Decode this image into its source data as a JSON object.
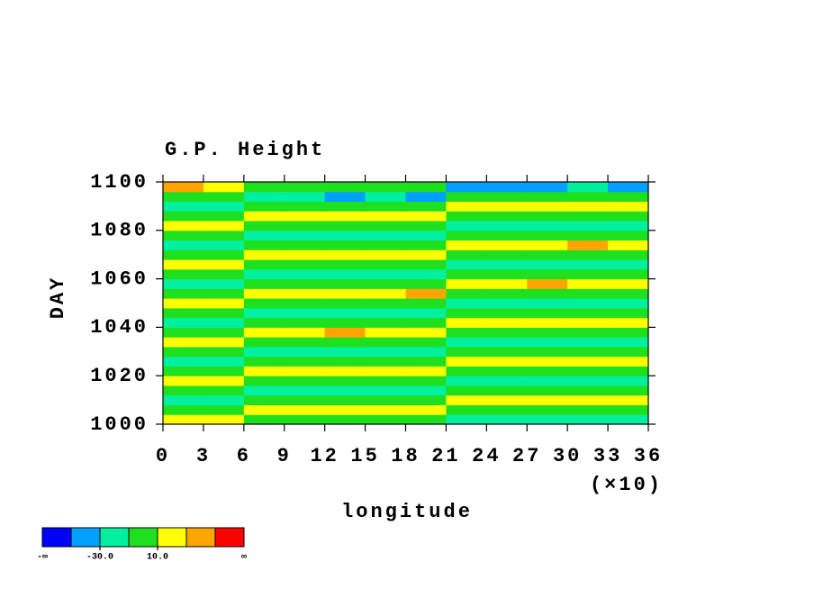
{
  "chart_data": {
    "type": "contour",
    "title": "G.P. Height",
    "x_label": "longitude",
    "y_label": "DAY",
    "x_scale_label": "(×10)",
    "xlim": [
      0,
      360
    ],
    "xticks": [
      0,
      {
        "value": 30,
        "label": "3"
      },
      {
        "value": 60,
        "label": "6"
      },
      {
        "value": 90,
        "label": "9"
      },
      {
        "value": 120,
        "label": "12"
      },
      {
        "value": 150,
        "label": "15"
      },
      {
        "value": 180,
        "label": "18"
      },
      {
        "value": 210,
        "label": "21"
      },
      {
        "value": 240,
        "label": "24"
      },
      {
        "value": 270,
        "label": "27"
      },
      {
        "value": 300,
        "label": "30"
      },
      {
        "value": 330,
        "label": "33"
      },
      {
        "value": 360,
        "label": "36"
      }
    ],
    "ylim": [
      1000,
      1100
    ],
    "yticks": [
      1000,
      1020,
      1040,
      1060,
      1080,
      1100
    ],
    "x": [
      15,
      45,
      75,
      105,
      135,
      165,
      195,
      225,
      255,
      285,
      315,
      345
    ],
    "y": [
      1002,
      1006,
      1010,
      1014,
      1018,
      1022,
      1026,
      1030,
      1034,
      1038,
      1042,
      1046,
      1050,
      1054,
      1058,
      1062,
      1066,
      1070,
      1074,
      1078,
      1082,
      1086,
      1090,
      1094,
      1098
    ],
    "z": [
      [
        18,
        16,
        -3,
        -2,
        -4,
        -1,
        -3,
        -17,
        -19,
        -16,
        -20,
        -18
      ],
      [
        3,
        1,
        19,
        17,
        21,
        16,
        18,
        -2,
        -4,
        -1,
        -3,
        -2
      ],
      [
        -17,
        -19,
        2,
        4,
        1,
        3,
        2,
        16,
        19,
        22,
        17,
        20
      ],
      [
        -2,
        -3,
        -19,
        -16,
        -18,
        -21,
        -17,
        1,
        3,
        2,
        4,
        1
      ],
      [
        19,
        17,
        -1,
        -3,
        -2,
        -4,
        -2,
        -18,
        -16,
        -19,
        -17,
        -21
      ],
      [
        2,
        4,
        17,
        20,
        18,
        22,
        19,
        -3,
        -1,
        -2,
        -4,
        -3
      ],
      [
        -18,
        -16,
        3,
        1,
        2,
        4,
        3,
        18,
        21,
        17,
        19,
        16
      ],
      [
        -3,
        -1,
        -17,
        -20,
        -22,
        -18,
        -16,
        2,
        1,
        4,
        3,
        2
      ],
      [
        17,
        20,
        -2,
        -1,
        -3,
        -2,
        -4,
        -19,
        -20,
        -17,
        -18,
        -16
      ],
      [
        1,
        3,
        18,
        21,
        36,
        17,
        20,
        -2,
        -3,
        -1,
        -2,
        -4
      ],
      [
        -19,
        -17,
        4,
        2,
        3,
        1,
        2,
        17,
        20,
        18,
        22,
        19
      ],
      [
        -1,
        -2,
        -18,
        -16,
        -19,
        -17,
        -20,
        3,
        2,
        1,
        4,
        3
      ],
      [
        18,
        19,
        -3,
        -2,
        -1,
        -4,
        -3,
        -17,
        -18,
        -21,
        -19,
        -17
      ],
      [
        2,
        1,
        19,
        18,
        17,
        21,
        38,
        -1,
        -2,
        -3,
        -1,
        -2
      ],
      [
        -16,
        -18,
        1,
        3,
        2,
        4,
        1,
        19,
        18,
        37,
        17,
        20
      ],
      [
        -3,
        -2,
        -20,
        -17,
        -18,
        -16,
        -19,
        2,
        3,
        1,
        2,
        4
      ],
      [
        19,
        18,
        -1,
        -2,
        -4,
        -3,
        -2,
        -18,
        -17,
        -16,
        -19,
        -20
      ],
      [
        3,
        2,
        17,
        19,
        21,
        18,
        17,
        -2,
        -1,
        -3,
        -4,
        -2
      ],
      [
        -18,
        -19,
        2,
        1,
        4,
        3,
        2,
        18,
        17,
        19,
        36,
        21
      ],
      [
        -2,
        -1,
        -19,
        -18,
        -17,
        -20,
        -16,
        1,
        2,
        3,
        1,
        2
      ],
      [
        17,
        19,
        -3,
        -1,
        -2,
        -4,
        -1,
        -17,
        -19,
        -18,
        -16,
        -17
      ],
      [
        1,
        2,
        18,
        20,
        17,
        19,
        21,
        -4,
        -2,
        -1,
        -3,
        -1
      ],
      [
        -17,
        -16,
        1,
        2,
        3,
        2,
        1,
        17,
        20,
        18,
        16,
        19
      ],
      [
        -1,
        -3,
        -19,
        -17,
        -33,
        -18,
        -34,
        3,
        1,
        2,
        4,
        2
      ],
      [
        36,
        18,
        -2,
        -3,
        -1,
        -2,
        -1,
        -32,
        -35,
        -31,
        -18,
        -36
      ]
    ],
    "colorbar": {
      "colors": [
        "#0000ff",
        "#00a0ff",
        "#00f0a0",
        "#1fe01f",
        "#ffff00",
        "#ffa500",
        "#ff0000"
      ],
      "levels": [
        -50,
        -30,
        -10,
        10,
        30,
        50
      ],
      "ticks": [
        {
          "value": null,
          "label": "-∞"
        },
        {
          "value": -30,
          "label": "-30.0"
        },
        {
          "value": 10,
          "label": "10.0"
        },
        {
          "value": null,
          "label": "∞"
        }
      ]
    }
  }
}
